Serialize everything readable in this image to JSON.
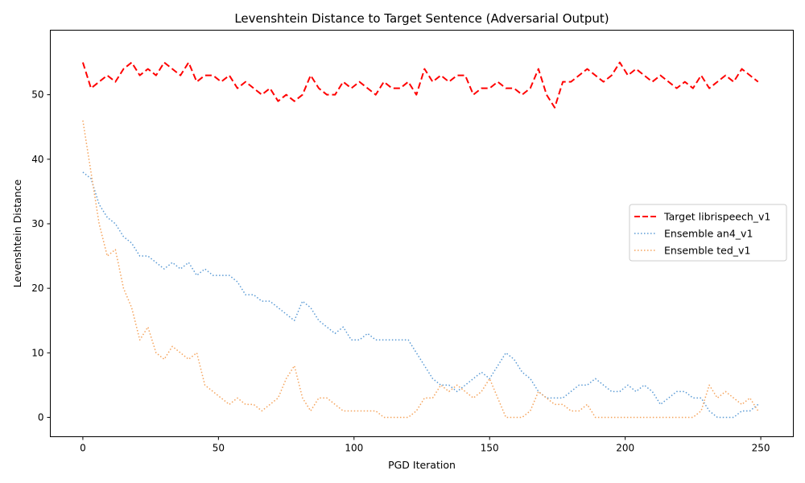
{
  "chart_data": {
    "type": "line",
    "title": "Levenshtein Distance to Target Sentence (Adversarial Output)",
    "xlabel": "PGD Iteration",
    "ylabel": "Levenshtein Distance",
    "xlim": [
      -12,
      262
    ],
    "ylim": [
      -3,
      60
    ],
    "xticks": [
      0,
      50,
      100,
      150,
      200,
      250
    ],
    "yticks": [
      0,
      10,
      20,
      30,
      40,
      50
    ],
    "grid": false,
    "legend_position": "center-right",
    "series": [
      {
        "name": "Target librispeech_v1",
        "color": "#ff0000",
        "style": "dashed",
        "x": [
          0,
          3,
          6,
          9,
          12,
          15,
          18,
          21,
          24,
          27,
          30,
          33,
          36,
          39,
          42,
          45,
          48,
          51,
          54,
          57,
          60,
          63,
          66,
          69,
          72,
          75,
          78,
          81,
          84,
          87,
          90,
          93,
          96,
          99,
          102,
          105,
          108,
          111,
          114,
          117,
          120,
          123,
          126,
          129,
          132,
          135,
          138,
          141,
          144,
          147,
          150,
          153,
          156,
          159,
          162,
          165,
          168,
          171,
          174,
          177,
          180,
          183,
          186,
          189,
          192,
          195,
          198,
          201,
          204,
          207,
          210,
          213,
          216,
          219,
          222,
          225,
          228,
          231,
          234,
          237,
          240,
          243,
          246,
          249
        ],
        "values": [
          55,
          51,
          52,
          53,
          52,
          54,
          55,
          53,
          54,
          53,
          55,
          54,
          53,
          55,
          52,
          53,
          53,
          52,
          53,
          51,
          52,
          51,
          50,
          51,
          49,
          50,
          49,
          50,
          53,
          51,
          50,
          50,
          52,
          51,
          52,
          51,
          50,
          52,
          51,
          51,
          52,
          50,
          54,
          52,
          53,
          52,
          53,
          53,
          50,
          51,
          51,
          52,
          51,
          51,
          50,
          51,
          54,
          50,
          48,
          52,
          52,
          53,
          54,
          53,
          52,
          53,
          55,
          53,
          54,
          53,
          52,
          53,
          52,
          51,
          52,
          51,
          53,
          51,
          52,
          53,
          52,
          54,
          53,
          52
        ]
      },
      {
        "name": "Ensemble an4_v1",
        "color": "#5b9bd5",
        "style": "dotted",
        "x": [
          0,
          3,
          6,
          9,
          12,
          15,
          18,
          21,
          24,
          27,
          30,
          33,
          36,
          39,
          42,
          45,
          48,
          51,
          54,
          57,
          60,
          63,
          66,
          69,
          72,
          75,
          78,
          81,
          84,
          87,
          90,
          93,
          96,
          99,
          102,
          105,
          108,
          111,
          114,
          117,
          120,
          123,
          126,
          129,
          132,
          135,
          138,
          141,
          144,
          147,
          150,
          153,
          156,
          159,
          162,
          165,
          168,
          171,
          174,
          177,
          180,
          183,
          186,
          189,
          192,
          195,
          198,
          201,
          204,
          207,
          210,
          213,
          216,
          219,
          222,
          225,
          228,
          231,
          234,
          237,
          240,
          243,
          246,
          249
        ],
        "values": [
          38,
          37,
          33,
          31,
          30,
          28,
          27,
          25,
          25,
          24,
          23,
          24,
          23,
          24,
          22,
          23,
          22,
          22,
          22,
          21,
          19,
          19,
          18,
          18,
          17,
          16,
          15,
          18,
          17,
          15,
          14,
          13,
          14,
          12,
          12,
          13,
          12,
          12,
          12,
          12,
          12,
          10,
          8,
          6,
          5,
          5,
          4,
          5,
          6,
          7,
          6,
          8,
          10,
          9,
          7,
          6,
          4,
          3,
          3,
          3,
          4,
          5,
          5,
          6,
          5,
          4,
          4,
          5,
          4,
          5,
          4,
          2,
          3,
          4,
          4,
          3,
          3,
          1,
          0,
          0,
          0,
          1,
          1,
          2
        ]
      },
      {
        "name": "Ensemble ted_v1",
        "color": "#f5a35b",
        "style": "dotted",
        "x": [
          0,
          3,
          6,
          9,
          12,
          15,
          18,
          21,
          24,
          27,
          30,
          33,
          36,
          39,
          42,
          45,
          48,
          51,
          54,
          57,
          60,
          63,
          66,
          69,
          72,
          75,
          78,
          81,
          84,
          87,
          90,
          93,
          96,
          99,
          102,
          105,
          108,
          111,
          114,
          117,
          120,
          123,
          126,
          129,
          132,
          135,
          138,
          141,
          144,
          147,
          150,
          153,
          156,
          159,
          162,
          165,
          168,
          171,
          174,
          177,
          180,
          183,
          186,
          189,
          192,
          195,
          198,
          201,
          204,
          207,
          210,
          213,
          216,
          219,
          222,
          225,
          228,
          231,
          234,
          237,
          240,
          243,
          246,
          249
        ],
        "values": [
          46,
          38,
          30,
          25,
          26,
          20,
          17,
          12,
          14,
          10,
          9,
          11,
          10,
          9,
          10,
          5,
          4,
          3,
          2,
          3,
          2,
          2,
          1,
          2,
          3,
          6,
          8,
          3,
          1,
          3,
          3,
          2,
          1,
          1,
          1,
          1,
          1,
          0,
          0,
          0,
          0,
          1,
          3,
          3,
          5,
          4,
          5,
          4,
          3,
          4,
          6,
          3,
          0,
          0,
          0,
          1,
          4,
          3,
          2,
          2,
          1,
          1,
          2,
          0,
          0,
          0,
          0,
          0,
          0,
          0,
          0,
          0,
          0,
          0,
          0,
          0,
          1,
          5,
          3,
          4,
          3,
          2,
          3,
          1
        ]
      }
    ]
  }
}
